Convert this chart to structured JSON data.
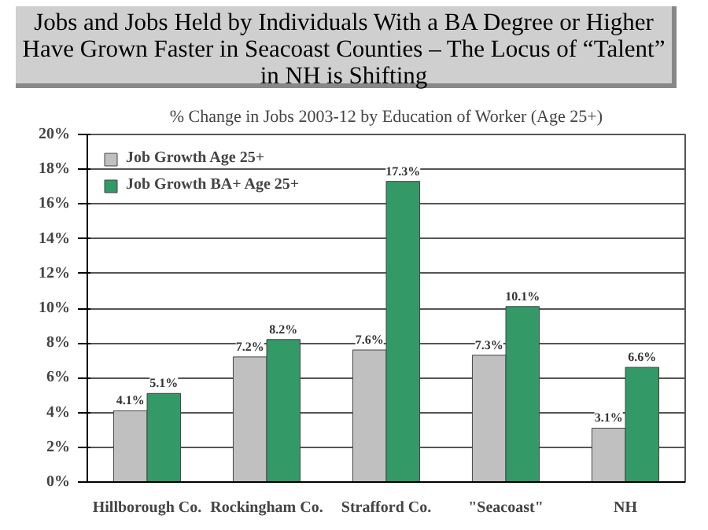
{
  "chart_data": {
    "type": "bar",
    "title": "Jobs and Jobs Held by Individuals With a BA Degree or Higher Have Grown Faster in Seacoast Counties – The Locus of “Talent” in NH is Shifting",
    "subtitle": "% Change in Jobs 2003-12 by Education of Worker (Age 25+)",
    "categories": [
      "Hillborough Co.",
      "Rockingham Co.",
      "Strafford Co.",
      "\"Seacoast\"",
      "NH"
    ],
    "series": [
      {
        "name": "Job Growth Age 25+",
        "color": "#c0c0c0",
        "values": [
          4.1,
          7.2,
          7.6,
          7.3,
          3.1
        ],
        "value_labels": [
          "4.1%",
          "7.2%",
          "7.6%",
          "7.3%",
          "3.1%"
        ]
      },
      {
        "name": "Job Growth BA+ Age 25+",
        "color": "#339966",
        "values": [
          5.1,
          8.2,
          17.3,
          10.1,
          6.6
        ],
        "value_labels": [
          "5.1%",
          "8.2%",
          "17.3%",
          "10.1%",
          "6.6%"
        ]
      }
    ],
    "ylim": [
      0,
      20
    ],
    "yticks": [
      {
        "value": 0,
        "label": "0%"
      },
      {
        "value": 2,
        "label": "2%"
      },
      {
        "value": 4,
        "label": "4%"
      },
      {
        "value": 6,
        "label": "6%"
      },
      {
        "value": 8,
        "label": "8%"
      },
      {
        "value": 10,
        "label": "10%"
      },
      {
        "value": 12,
        "label": "12%"
      },
      {
        "value": 14,
        "label": "14%"
      },
      {
        "value": 16,
        "label": "16%"
      },
      {
        "value": 18,
        "label": "18%"
      },
      {
        "value": 20,
        "label": "20%"
      }
    ],
    "grid": "y",
    "legend": "top left"
  }
}
